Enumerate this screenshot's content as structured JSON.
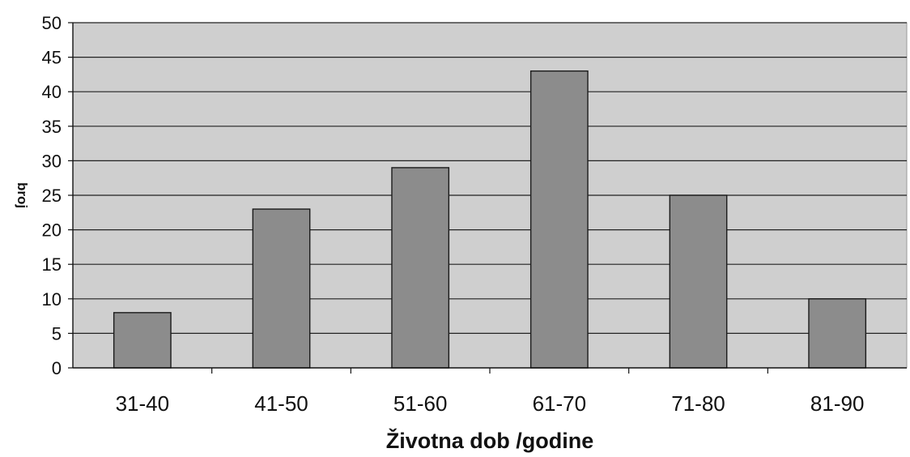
{
  "chart_data": {
    "type": "bar",
    "categories": [
      "31-40",
      "41-50",
      "51-60",
      "61-70",
      "71-80",
      "81-90"
    ],
    "values": [
      8,
      23,
      29,
      43,
      25,
      10
    ],
    "xlabel": "Životna dob /godine",
    "ylabel": "broj",
    "ylim": [
      0,
      50
    ],
    "yticks": [
      0,
      5,
      10,
      15,
      20,
      25,
      30,
      35,
      40,
      45,
      50
    ],
    "grid": true,
    "legend": "none"
  },
  "colors": {
    "plot_background": "#cfcfcf",
    "bar_fill": "#8c8c8c",
    "bar_stroke": "#1a1a1a",
    "gridline": "#222222"
  }
}
